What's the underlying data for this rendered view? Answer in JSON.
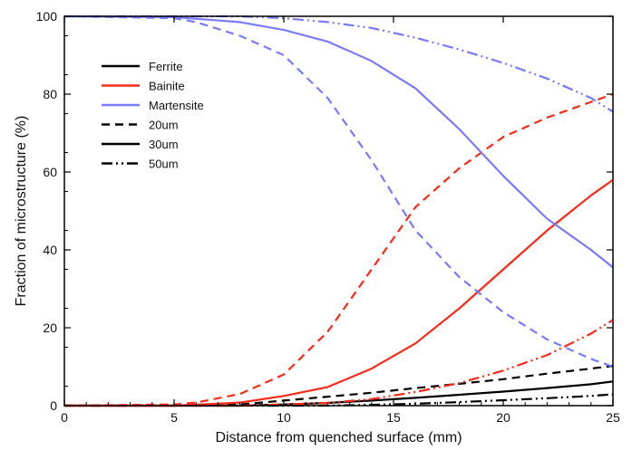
{
  "chart_data": {
    "type": "line",
    "xlabel": "Distance from quenched surface (mm)",
    "ylabel": "Fraction of microstructure (%)",
    "xlim": [
      0,
      25
    ],
    "ylim": [
      0,
      100
    ],
    "x_ticks": [
      "0",
      "5",
      "10",
      "15",
      "20",
      "25"
    ],
    "y_ticks": [
      "0",
      "20",
      "40",
      "60",
      "80",
      "100"
    ],
    "grid": false,
    "legend_position": "top-left",
    "legend": {
      "phases": [
        {
          "label": "Ferrite",
          "color": "#000000"
        },
        {
          "label": "Bainite",
          "color": "#ff2a1a"
        },
        {
          "label": "Martensite",
          "color": "#7a7aff"
        }
      ],
      "sizes": [
        {
          "label": "20um",
          "style": "dashed"
        },
        {
          "label": "30um",
          "style": "solid"
        },
        {
          "label": "50um",
          "style": "dash-dot-dot"
        }
      ]
    },
    "series": [
      {
        "phase": "Ferrite",
        "size": "20um",
        "color": "#000000",
        "style": "dashed",
        "x": [
          0,
          5,
          8,
          10,
          12,
          14,
          16,
          18,
          20,
          22,
          24,
          25
        ],
        "y": [
          0,
          0,
          0.3,
          1.3,
          2.3,
          3.3,
          4.5,
          5.6,
          6.8,
          8.2,
          9.5,
          10.2
        ]
      },
      {
        "phase": "Ferrite",
        "size": "30um",
        "color": "#000000",
        "style": "solid",
        "x": [
          0,
          5,
          8,
          10,
          12,
          14,
          16,
          18,
          20,
          22,
          24,
          25
        ],
        "y": [
          0,
          0,
          0,
          0.3,
          0.7,
          1.3,
          2.0,
          2.8,
          3.6,
          4.5,
          5.5,
          6.2
        ]
      },
      {
        "phase": "Ferrite",
        "size": "50um",
        "color": "#000000",
        "style": "dash-dot-dot",
        "x": [
          0,
          8,
          12,
          14,
          16,
          18,
          20,
          22,
          24,
          25
        ],
        "y": [
          0,
          0,
          0,
          0.2,
          0.5,
          0.9,
          1.4,
          1.9,
          2.5,
          2.9
        ]
      },
      {
        "phase": "Bainite",
        "size": "20um",
        "color": "#ff2a1a",
        "style": "dashed",
        "x": [
          0,
          5,
          6,
          8,
          10,
          12,
          14,
          16,
          18,
          20,
          22,
          24,
          25
        ],
        "y": [
          0,
          0.3,
          0.8,
          3,
          8,
          19,
          35,
          51,
          61,
          69,
          74,
          78,
          80
        ]
      },
      {
        "phase": "Bainite",
        "size": "30um",
        "color": "#ff2a1a",
        "style": "solid",
        "x": [
          0,
          5,
          8,
          10,
          12,
          14,
          16,
          18,
          20,
          22,
          24,
          25
        ],
        "y": [
          0,
          0,
          0.8,
          2.5,
          4.8,
          9.5,
          16,
          25,
          35,
          45,
          54,
          58
        ]
      },
      {
        "phase": "Bainite",
        "size": "50um",
        "color": "#ff2a1a",
        "style": "dash-dot-dot",
        "x": [
          0,
          8,
          10,
          12,
          14,
          16,
          18,
          20,
          22,
          24,
          25
        ],
        "y": [
          0,
          0,
          0.3,
          0.7,
          1.7,
          3.5,
          5.8,
          9,
          13,
          18.5,
          22
        ]
      },
      {
        "phase": "Martensite",
        "size": "20um",
        "color": "#7a7aff",
        "style": "dashed",
        "x": [
          0,
          5,
          6,
          8,
          10,
          12,
          14,
          16,
          18,
          20,
          22,
          24,
          25
        ],
        "y": [
          100,
          99.5,
          98.5,
          95,
          90,
          79,
          63,
          45,
          33,
          24,
          17,
          12,
          10
        ]
      },
      {
        "phase": "Martensite",
        "size": "30um",
        "color": "#7a7aff",
        "style": "solid",
        "x": [
          0,
          5,
          8,
          10,
          12,
          14,
          16,
          18,
          20,
          22,
          24,
          25
        ],
        "y": [
          100,
          99.8,
          98.5,
          96.5,
          93.5,
          88.5,
          81.5,
          71,
          59,
          48,
          40,
          35.5
        ]
      },
      {
        "phase": "Martensite",
        "size": "50um",
        "color": "#7a7aff",
        "style": "dash-dot-dot",
        "x": [
          0,
          8,
          10,
          12,
          14,
          16,
          18,
          20,
          22,
          24,
          25
        ],
        "y": [
          100,
          100,
          99.5,
          98.5,
          97,
          94.5,
          91.5,
          88,
          84,
          79,
          75.5
        ]
      }
    ]
  }
}
